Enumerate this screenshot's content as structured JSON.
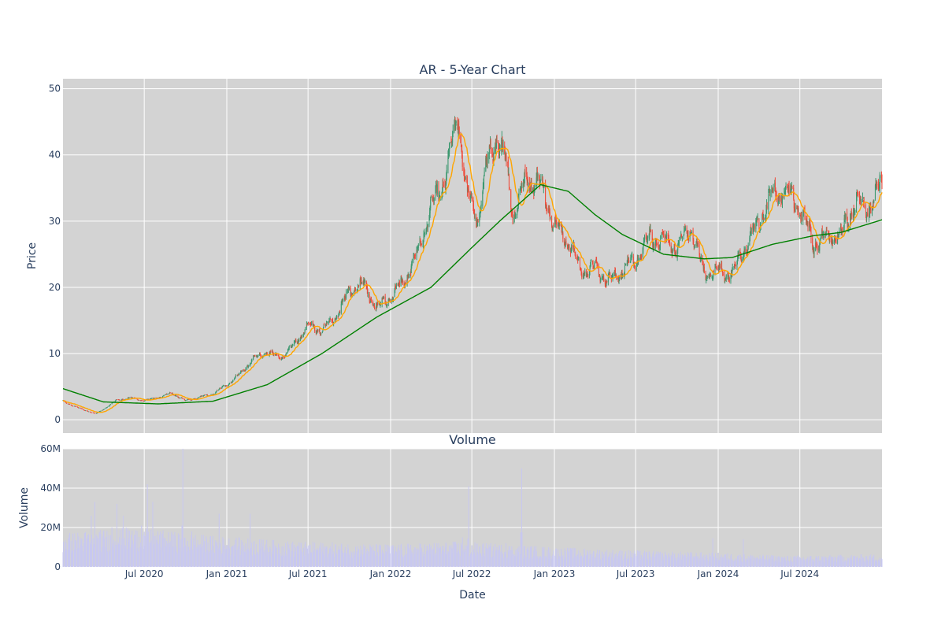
{
  "colors": {
    "plot_bg": "#d3d3d3",
    "up": "#3d9970",
    "down": "#ef4b3a",
    "ma_short": "#ffa500",
    "ma_long": "#008000",
    "volume": "#c8c8f0",
    "text": "#2a3f5f"
  },
  "chart_data": [
    {
      "type": "candlestick",
      "title": "AR - 5-Year Chart",
      "ylabel": "Price",
      "xlabel": "",
      "x_range": [
        "2020-01-02",
        "2024-12-31"
      ],
      "ylim": [
        -2,
        51.5
      ],
      "yticks": [
        0,
        10,
        20,
        30,
        40,
        50
      ],
      "grid": true,
      "legend": "none",
      "series": [
        {
          "type": "candlestick",
          "increasing_color": "#3d9970",
          "decreasing_color": "#ef4b3a"
        },
        {
          "type": "line",
          "role": "short moving average",
          "color": "#ffa500"
        },
        {
          "type": "line",
          "role": "long moving average",
          "color": "#008000"
        }
      ],
      "close_anchors": [
        [
          "2020-01-02",
          2.8
        ],
        [
          "2020-02-01",
          1.9
        ],
        [
          "2020-03-15",
          0.9
        ],
        [
          "2020-04-15",
          2.2
        ],
        [
          "2020-05-01",
          3.0
        ],
        [
          "2020-06-01",
          3.3
        ],
        [
          "2020-07-01",
          2.9
        ],
        [
          "2020-08-01",
          3.4
        ],
        [
          "2020-09-01",
          4.0
        ],
        [
          "2020-10-01",
          2.9
        ],
        [
          "2020-11-01",
          3.4
        ],
        [
          "2020-12-01",
          3.9
        ],
        [
          "2021-01-01",
          5.3
        ],
        [
          "2021-02-01",
          7.0
        ],
        [
          "2021-03-01",
          9.2
        ],
        [
          "2021-04-01",
          10.2
        ],
        [
          "2021-05-01",
          9.3
        ],
        [
          "2021-06-01",
          11.5
        ],
        [
          "2021-07-01",
          14.3
        ],
        [
          "2021-08-01",
          13.5
        ],
        [
          "2021-09-01",
          15.5
        ],
        [
          "2021-10-01",
          19.5
        ],
        [
          "2021-11-01",
          20.5
        ],
        [
          "2021-12-01",
          17.0
        ],
        [
          "2022-01-01",
          18.5
        ],
        [
          "2022-02-01",
          21.0
        ],
        [
          "2022-03-01",
          25.0
        ],
        [
          "2022-04-01",
          32.0
        ],
        [
          "2022-05-01",
          36.0
        ],
        [
          "2022-06-01",
          46.0
        ],
        [
          "2022-06-20",
          34.0
        ],
        [
          "2022-07-15",
          30.0
        ],
        [
          "2022-08-01",
          38.0
        ],
        [
          "2022-08-25",
          42.5
        ],
        [
          "2022-09-15",
          39.0
        ],
        [
          "2022-10-01",
          31.0
        ],
        [
          "2022-11-01",
          36.5
        ],
        [
          "2022-12-01",
          35.5
        ],
        [
          "2023-01-01",
          29.5
        ],
        [
          "2023-02-01",
          27.0
        ],
        [
          "2023-03-01",
          22.5
        ],
        [
          "2023-04-01",
          23.0
        ],
        [
          "2023-05-01",
          21.0
        ],
        [
          "2023-06-01",
          22.5
        ],
        [
          "2023-07-01",
          24.0
        ],
        [
          "2023-08-01",
          27.5
        ],
        [
          "2023-09-01",
          27.0
        ],
        [
          "2023-10-01",
          26.0
        ],
        [
          "2023-11-01",
          29.0
        ],
        [
          "2023-12-01",
          22.0
        ],
        [
          "2024-01-01",
          22.5
        ],
        [
          "2024-02-01",
          22.0
        ],
        [
          "2024-03-01",
          26.0
        ],
        [
          "2024-04-01",
          30.0
        ],
        [
          "2024-05-01",
          34.0
        ],
        [
          "2024-06-01",
          34.5
        ],
        [
          "2024-07-01",
          32.0
        ],
        [
          "2024-08-01",
          26.5
        ],
        [
          "2024-09-01",
          27.5
        ],
        [
          "2024-10-01",
          28.0
        ],
        [
          "2024-11-01",
          33.0
        ],
        [
          "2024-12-01",
          32.0
        ],
        [
          "2024-12-31",
          35.5
        ]
      ],
      "ma_long_anchors": [
        [
          "2020-01-02",
          4.7
        ],
        [
          "2020-04-01",
          2.7
        ],
        [
          "2020-08-01",
          2.4
        ],
        [
          "2020-12-01",
          2.8
        ],
        [
          "2021-04-01",
          5.3
        ],
        [
          "2021-08-01",
          10.0
        ],
        [
          "2021-12-01",
          15.5
        ],
        [
          "2022-04-01",
          20.0
        ],
        [
          "2022-07-01",
          26.0
        ],
        [
          "2022-09-01",
          30.0
        ],
        [
          "2022-12-01",
          35.5
        ],
        [
          "2023-02-01",
          34.5
        ],
        [
          "2023-04-01",
          31.0
        ],
        [
          "2023-06-01",
          28.0
        ],
        [
          "2023-09-01",
          25.0
        ],
        [
          "2023-12-01",
          24.3
        ],
        [
          "2024-02-01",
          24.5
        ],
        [
          "2024-05-01",
          26.5
        ],
        [
          "2024-08-01",
          27.8
        ],
        [
          "2024-10-01",
          28.3
        ],
        [
          "2024-12-31",
          30.2
        ]
      ]
    },
    {
      "type": "bar",
      "title": "Volume",
      "ylabel": "Volume",
      "xlabel": "Date",
      "x_range": [
        "2020-01-02",
        "2024-12-31"
      ],
      "ylim": [
        0,
        60000000
      ],
      "yticks": [
        0,
        20000000,
        40000000,
        60000000
      ],
      "ytick_labels": [
        "0",
        "20M",
        "40M",
        "60M"
      ],
      "xticks": [
        "2020-07-01",
        "2021-01-01",
        "2021-07-01",
        "2022-01-01",
        "2022-07-01",
        "2023-01-01",
        "2023-07-01",
        "2024-01-01",
        "2024-07-01"
      ],
      "xtick_labels": [
        "Jul 2020",
        "Jan 2021",
        "Jul 2021",
        "Jan 2022",
        "Jul 2022",
        "Jan 2023",
        "Jul 2023",
        "Jan 2024",
        "Jul 2024"
      ],
      "grid": true,
      "base_volume_anchors": [
        [
          "2020-01-02",
          12000000
        ],
        [
          "2020-06-01",
          14000000
        ],
        [
          "2020-12-01",
          11000000
        ],
        [
          "2021-06-01",
          9000000
        ],
        [
          "2022-01-01",
          8000000
        ],
        [
          "2022-06-01",
          9000000
        ],
        [
          "2023-01-01",
          7000000
        ],
        [
          "2023-06-01",
          6000000
        ],
        [
          "2024-01-01",
          5000000
        ],
        [
          "2024-06-01",
          4000000
        ],
        [
          "2024-12-31",
          4500000
        ]
      ],
      "volume_spikes": [
        [
          "2020-03-05",
          26000000
        ],
        [
          "2020-03-13",
          33000000
        ],
        [
          "2020-04-20",
          20000000
        ],
        [
          "2020-05-01",
          32000000
        ],
        [
          "2020-05-15",
          26000000
        ],
        [
          "2020-06-25",
          21000000
        ],
        [
          "2020-07-08",
          42000000
        ],
        [
          "2020-07-20",
          33000000
        ],
        [
          "2020-09-01",
          17000000
        ],
        [
          "2020-09-25",
          60000000
        ],
        [
          "2020-10-15",
          18000000
        ],
        [
          "2020-12-15",
          27000000
        ],
        [
          "2021-02-22",
          27000000
        ],
        [
          "2021-03-15",
          14000000
        ],
        [
          "2022-04-10",
          14000000
        ],
        [
          "2022-06-10",
          15000000
        ],
        [
          "2022-06-24",
          41000000
        ],
        [
          "2022-09-15",
          12000000
        ],
        [
          "2022-10-20",
          50000000
        ],
        [
          "2023-06-10",
          12000000
        ],
        [
          "2023-12-20",
          14500000
        ],
        [
          "2024-02-26",
          14000000
        ]
      ]
    }
  ]
}
